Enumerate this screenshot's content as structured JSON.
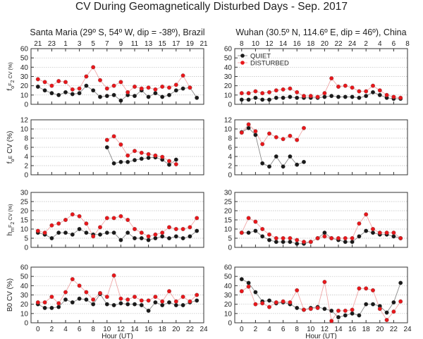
{
  "figure_title": "CV During Geomagnetically Disturbed Days - Sep. 2017",
  "colors": {
    "quiet": "#1a1a1a",
    "disturbed": "#e8171b",
    "quiet_line": "#8a8a8a",
    "disturbed_line": "#f0a8a8",
    "grid": "#bdbdbd"
  },
  "chart_data": [
    {
      "type": "line",
      "panel": "left-row1",
      "title": "Santa Maria (29º S, 54º W, dip = -38º), Brazil",
      "xlabel": "",
      "ylabel": "foF2 CV (%)",
      "xlim": [
        -1,
        24
      ],
      "ylim": [
        0,
        60
      ],
      "yticks": [
        0,
        10,
        20,
        30,
        40,
        50,
        60
      ],
      "xticks": [
        0,
        2,
        4,
        6,
        8,
        10,
        12,
        14,
        16,
        18,
        20,
        22,
        24
      ],
      "top_axis_ticks": [
        "21",
        "23",
        "1",
        "3",
        "5",
        "7",
        "9",
        "11",
        "13",
        "15",
        "17",
        "19",
        "21"
      ],
      "x": [
        0,
        1,
        2,
        3,
        4,
        5,
        6,
        7,
        8,
        9,
        10,
        11,
        12,
        13,
        14,
        15,
        16,
        17,
        18,
        19,
        20,
        21,
        22,
        23
      ],
      "series": [
        {
          "name": "QUIET",
          "values": [
            19,
            15,
            12,
            10,
            13,
            11,
            12,
            20,
            15,
            8,
            9,
            10,
            4,
            10,
            9,
            15,
            8,
            12,
            8,
            10,
            15,
            17,
            18,
            7
          ]
        },
        {
          "name": "DISTURBED",
          "values": [
            27,
            24,
            20,
            25,
            24,
            16,
            17,
            30,
            40,
            26,
            17,
            20,
            24,
            13,
            19,
            17,
            18,
            16,
            19,
            18,
            21,
            31,
            18,
            null
          ]
        }
      ]
    },
    {
      "type": "line",
      "panel": "right-row1",
      "title": "Wuhan (30.5º N, 114.6º E, dip = 46º), China",
      "xlabel": "",
      "ylabel": "",
      "xlim": [
        -1,
        24
      ],
      "ylim": [
        0,
        60
      ],
      "yticks": [
        0,
        10,
        20,
        30,
        40,
        50,
        60
      ],
      "xticks": [
        0,
        2,
        4,
        6,
        8,
        10,
        12,
        14,
        16,
        18,
        20,
        22,
        24
      ],
      "top_axis_ticks": [
        "8",
        "10",
        "12",
        "14",
        "16",
        "18",
        "20",
        "22",
        "24",
        "2",
        "4",
        "6",
        "8"
      ],
      "x": [
        0,
        1,
        2,
        3,
        4,
        5,
        6,
        7,
        8,
        9,
        10,
        11,
        12,
        13,
        14,
        15,
        16,
        17,
        18,
        19,
        20,
        21,
        22,
        23
      ],
      "legend": {
        "placement": "top-left",
        "entries": [
          "QUIET",
          "DISTURBED"
        ]
      },
      "series": [
        {
          "name": "QUIET",
          "values": [
            5,
            5,
            7,
            5,
            5,
            7,
            7,
            8,
            7,
            7,
            7,
            7,
            8,
            9,
            8,
            8,
            8,
            7,
            9,
            13,
            10,
            7,
            6,
            6
          ]
        },
        {
          "name": "DISTURBED",
          "values": [
            12,
            12,
            14,
            12,
            13,
            15,
            16,
            17,
            13,
            9,
            9,
            8,
            12,
            28,
            19,
            20,
            18,
            14,
            14,
            20,
            15,
            10,
            8,
            7
          ]
        }
      ]
    },
    {
      "type": "line",
      "panel": "left-row2",
      "xlabel": "",
      "ylabel": "foE CV (%)",
      "xlim": [
        -1,
        24
      ],
      "ylim": [
        0,
        12
      ],
      "yticks": [
        0,
        2,
        4,
        6,
        8,
        10,
        12
      ],
      "xticks": [
        0,
        2,
        4,
        6,
        8,
        10,
        12,
        14,
        16,
        18,
        20,
        22,
        24
      ],
      "x": [
        0,
        1,
        2,
        3,
        4,
        5,
        6,
        7,
        8,
        9,
        10,
        11,
        12,
        13,
        14,
        15,
        16,
        17,
        18,
        19,
        20,
        21,
        22,
        23
      ],
      "series": [
        {
          "name": "QUIET",
          "values": [
            null,
            null,
            null,
            null,
            null,
            null,
            null,
            null,
            null,
            null,
            6,
            2.5,
            2.8,
            2.8,
            3.2,
            3.5,
            3.7,
            3.8,
            3.3,
            2.2,
            3.3,
            null,
            null,
            null
          ]
        },
        {
          "name": "DISTURBED",
          "values": [
            null,
            null,
            null,
            null,
            null,
            null,
            null,
            null,
            null,
            null,
            7.6,
            8.4,
            6.6,
            4.2,
            5.2,
            4.8,
            4.5,
            4.2,
            3.9,
            3.0,
            2.3,
            null,
            null,
            null
          ]
        }
      ]
    },
    {
      "type": "line",
      "panel": "right-row2",
      "xlabel": "",
      "ylabel": "",
      "xlim": [
        -1,
        24
      ],
      "ylim": [
        0,
        12
      ],
      "yticks": [
        0,
        2,
        4,
        6,
        8,
        10,
        12
      ],
      "xticks": [
        0,
        2,
        4,
        6,
        8,
        10,
        12,
        14,
        16,
        18,
        20,
        22,
        24
      ],
      "x": [
        0,
        1,
        2,
        3,
        4,
        5,
        6,
        7,
        8,
        9,
        10,
        11,
        12,
        13,
        14,
        15,
        16,
        17,
        18,
        19,
        20,
        21,
        22,
        23
      ],
      "series": [
        {
          "name": "QUIET",
          "values": [
            9.3,
            10.2,
            8.7,
            2.5,
            1.8,
            4.0,
            1.8,
            4.0,
            2.2,
            2.8,
            null,
            null,
            null,
            null,
            null,
            null,
            null,
            null,
            null,
            null,
            null,
            null,
            null,
            null
          ]
        },
        {
          "name": "DISTURBED",
          "values": [
            9.2,
            11.0,
            9.5,
            6.7,
            9.0,
            8.2,
            7.8,
            8.5,
            7.6,
            10.2,
            null,
            null,
            null,
            null,
            null,
            null,
            null,
            null,
            null,
            null,
            null,
            null,
            null,
            null
          ]
        }
      ]
    },
    {
      "type": "line",
      "panel": "left-row3",
      "xlabel": "",
      "ylabel": "hmF2 CV (%)",
      "xlim": [
        -1,
        24
      ],
      "ylim": [
        0,
        30
      ],
      "yticks": [
        0,
        5,
        10,
        15,
        20,
        25,
        30
      ],
      "xticks": [
        0,
        2,
        4,
        6,
        8,
        10,
        12,
        14,
        16,
        18,
        20,
        22,
        24
      ],
      "x": [
        0,
        1,
        2,
        3,
        4,
        5,
        6,
        7,
        8,
        9,
        10,
        11,
        12,
        13,
        14,
        15,
        16,
        17,
        18,
        19,
        20,
        21,
        22,
        23
      ],
      "series": [
        {
          "name": "QUIET",
          "values": [
            8,
            7,
            5,
            8,
            8,
            7,
            10,
            8,
            7,
            7,
            8,
            8,
            4,
            8,
            5,
            5,
            4,
            5,
            6,
            5,
            6,
            5,
            6,
            9
          ]
        },
        {
          "name": "DISTURBED",
          "values": [
            9,
            8,
            12,
            13,
            15,
            18,
            17,
            13,
            6,
            11,
            16,
            16,
            17,
            15,
            10,
            8,
            6,
            7,
            8,
            11,
            10,
            10,
            11,
            16
          ]
        }
      ]
    },
    {
      "type": "line",
      "panel": "right-row3",
      "xlabel": "",
      "ylabel": "",
      "xlim": [
        -1,
        24
      ],
      "ylim": [
        0,
        30
      ],
      "yticks": [
        0,
        5,
        10,
        15,
        20,
        25,
        30
      ],
      "xticks": [
        0,
        2,
        4,
        6,
        8,
        10,
        12,
        14,
        16,
        18,
        20,
        22,
        24
      ],
      "x": [
        0,
        1,
        2,
        3,
        4,
        5,
        6,
        7,
        8,
        9,
        10,
        11,
        12,
        13,
        14,
        15,
        16,
        17,
        18,
        19,
        20,
        21,
        22,
        23
      ],
      "series": [
        {
          "name": "QUIET",
          "values": [
            8,
            8,
            9,
            6,
            4,
            3,
            3,
            3,
            2,
            2,
            3,
            5,
            8,
            5,
            4,
            3,
            3,
            6,
            9,
            8,
            7,
            7,
            6,
            5
          ]
        },
        {
          "name": "DISTURBED",
          "values": [
            8,
            16,
            14,
            10,
            7,
            5,
            5,
            5,
            4,
            3,
            3,
            5,
            6,
            5,
            5,
            5,
            5,
            13,
            18,
            10,
            8,
            8,
            8,
            5
          ]
        }
      ]
    },
    {
      "type": "line",
      "panel": "left-row4",
      "xlabel": "Hour (UT)",
      "ylabel": "B0 CV (%)",
      "xlim": [
        -1,
        24
      ],
      "ylim": [
        0,
        60
      ],
      "yticks": [
        0,
        10,
        20,
        30,
        40,
        50,
        60
      ],
      "xticks": [
        0,
        2,
        4,
        6,
        8,
        10,
        12,
        14,
        16,
        18,
        20,
        22,
        24
      ],
      "x": [
        0,
        1,
        2,
        3,
        4,
        5,
        6,
        7,
        8,
        9,
        10,
        11,
        12,
        13,
        14,
        15,
        16,
        17,
        18,
        19,
        20,
        21,
        22,
        23
      ],
      "series": [
        {
          "name": "QUIET",
          "values": [
            20,
            16,
            16,
            17,
            25,
            22,
            26,
            25,
            20,
            31,
            20,
            19,
            21,
            20,
            20,
            19,
            13,
            22,
            19,
            22,
            19,
            19,
            22,
            24
          ]
        },
        {
          "name": "DISTURBED",
          "values": [
            22,
            22,
            28,
            21,
            33,
            47,
            40,
            33,
            25,
            32,
            28,
            51,
            26,
            25,
            28,
            24,
            24,
            28,
            23,
            34,
            23,
            28,
            23,
            30
          ]
        }
      ]
    },
    {
      "type": "line",
      "panel": "right-row4",
      "xlabel": "Hour (UT)",
      "ylabel": "",
      "xlim": [
        -1,
        24
      ],
      "ylim": [
        0,
        60
      ],
      "yticks": [
        0,
        10,
        20,
        30,
        40,
        50,
        60
      ],
      "xticks": [
        0,
        2,
        4,
        6,
        8,
        10,
        12,
        14,
        16,
        18,
        20,
        22,
        24
      ],
      "x": [
        0,
        1,
        2,
        3,
        4,
        5,
        6,
        7,
        8,
        9,
        10,
        11,
        12,
        13,
        14,
        15,
        16,
        17,
        18,
        19,
        20,
        21,
        22,
        23
      ],
      "series": [
        {
          "name": "QUIET",
          "values": [
            47,
            43,
            33,
            23,
            24,
            21,
            22,
            20,
            16,
            14,
            16,
            17,
            15,
            13,
            6,
            8,
            10,
            8,
            20,
            20,
            18,
            11,
            22,
            43
          ]
        },
        {
          "name": "DISTURBED",
          "values": [
            34,
            39,
            20,
            21,
            17,
            22,
            23,
            22,
            35,
            14,
            15,
            16,
            44,
            2,
            13,
            13,
            14,
            37,
            37,
            35,
            15,
            3,
            12,
            23
          ]
        }
      ]
    }
  ]
}
